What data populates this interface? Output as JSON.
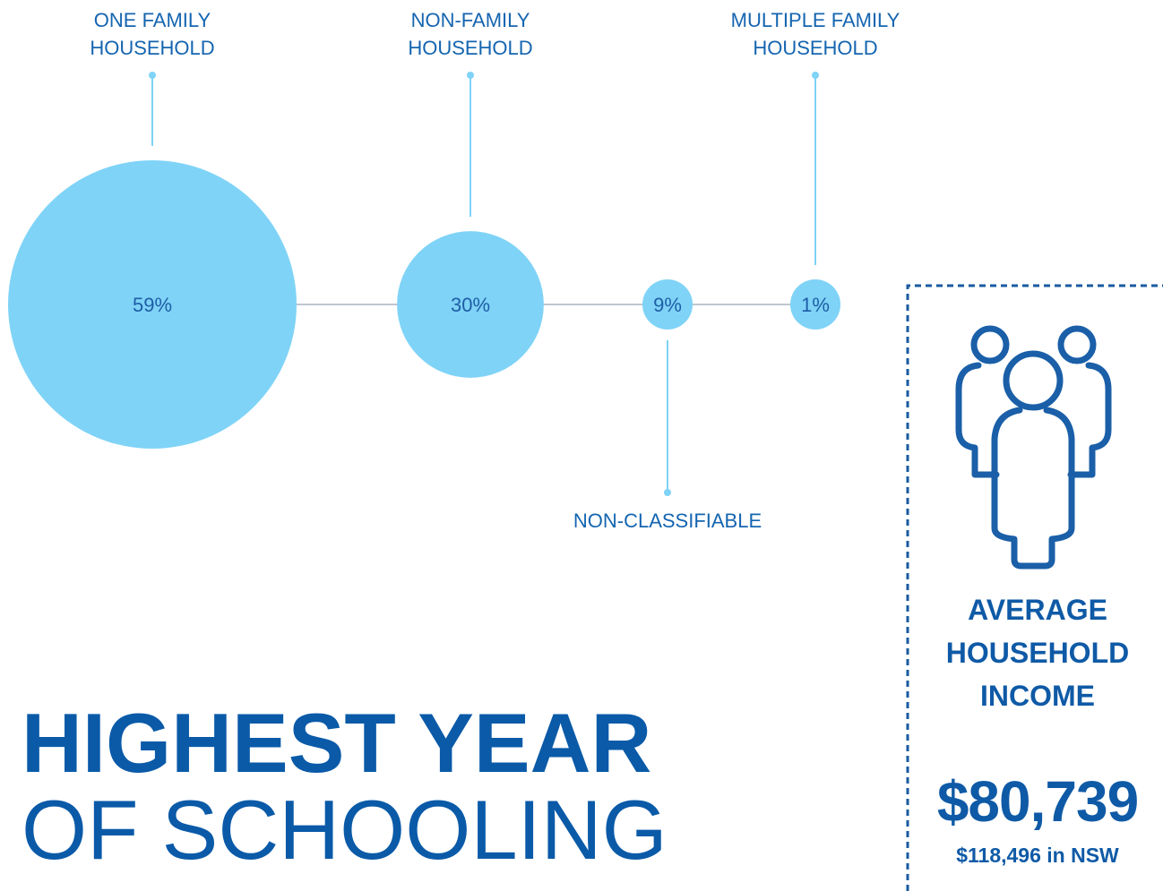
{
  "chart_data": {
    "type": "bubble",
    "categories": [
      "ONE FAMILY HOUSEHOLD",
      "NON-FAMILY HOUSEHOLD",
      "NON-CLASSIFIABLE",
      "MULTIPLE FAMILY HOUSEHOLD"
    ],
    "values": [
      59,
      30,
      9,
      1
    ],
    "value_labels": [
      "59%",
      "30%",
      "9%",
      "1%"
    ],
    "color": "#7fd3f7"
  },
  "heading": {
    "line1": "HIGHEST YEAR",
    "line2": "OF SCHOOLING"
  },
  "income_panel": {
    "title_lines": [
      "AVERAGE",
      "HOUSEHOLD",
      "INCOME"
    ],
    "value": "$80,739",
    "comparison": "$118,496 in NSW"
  }
}
